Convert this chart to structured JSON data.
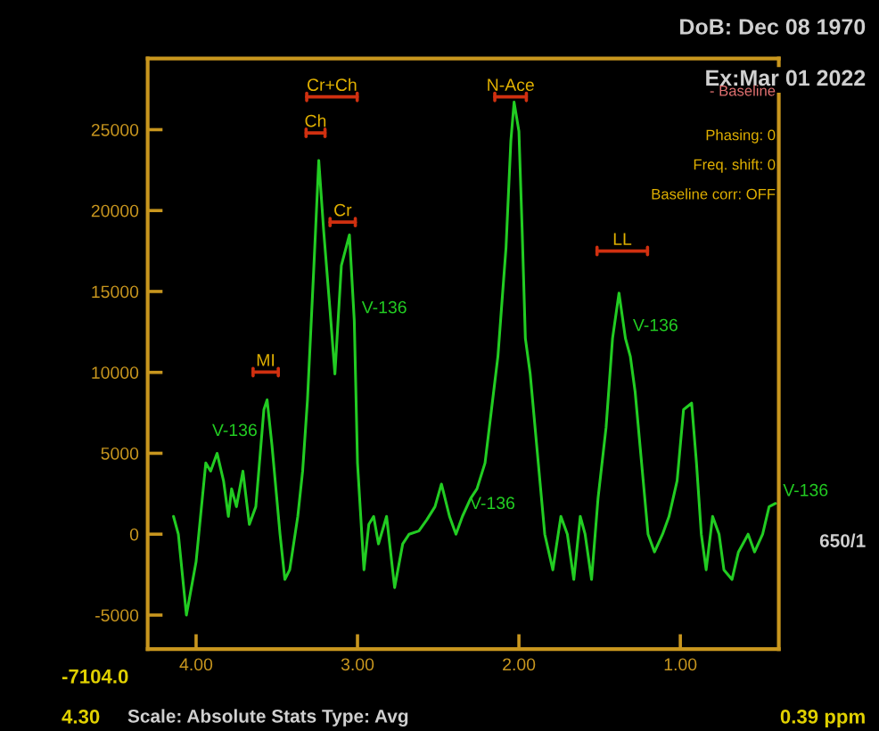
{
  "chart_data": {
    "type": "line",
    "x": [
      4.14,
      4.11,
      4.06,
      4.0,
      3.94,
      3.91,
      3.87,
      3.83,
      3.8,
      3.78,
      3.75,
      3.71,
      3.67,
      3.63,
      3.58,
      3.56,
      3.53,
      3.48,
      3.45,
      3.42,
      3.37,
      3.34,
      3.31,
      3.27,
      3.24,
      3.21,
      3.17,
      3.14,
      3.1,
      3.05,
      3.02,
      3.0,
      2.96,
      2.93,
      2.9,
      2.87,
      2.82,
      2.77,
      2.72,
      2.68,
      2.62,
      2.57,
      2.52,
      2.48,
      2.43,
      2.39,
      2.35,
      2.3,
      2.26,
      2.21,
      2.17,
      2.13,
      2.08,
      2.05,
      2.03,
      2.0,
      1.98,
      1.96,
      1.93,
      1.88,
      1.84,
      1.79,
      1.74,
      1.7,
      1.66,
      1.62,
      1.59,
      1.55,
      1.51,
      1.46,
      1.42,
      1.38,
      1.34,
      1.31,
      1.28,
      1.24,
      1.2,
      1.16,
      1.11,
      1.07,
      1.02,
      0.98,
      0.93,
      0.9,
      0.87,
      0.84,
      0.8,
      0.76,
      0.73,
      0.68,
      0.64,
      0.58,
      0.54,
      0.49,
      0.45,
      0.41
    ],
    "series": [
      {
        "color": "#22cc22",
        "values": [
          1100,
          0,
          -5000,
          -1700,
          4400,
          3900,
          5000,
          3300,
          1100,
          2800,
          1700,
          3900,
          600,
          1700,
          7700,
          8300,
          5500,
          0,
          -2800,
          -2200,
          1100,
          3900,
          8300,
          16600,
          23100,
          18800,
          13800,
          9900,
          16600,
          18500,
          13200,
          4400,
          -2200,
          600,
          1100,
          -600,
          1100,
          -3300,
          -600,
          0,
          200,
          900,
          1700,
          3100,
          1100,
          0,
          1100,
          2200,
          2800,
          4400,
          7700,
          11000,
          17700,
          24300,
          26700,
          24900,
          18800,
          12100,
          9900,
          4400,
          0,
          -2200,
          1100,
          0,
          -2800,
          1100,
          0,
          -2800,
          2200,
          6600,
          12100,
          14900,
          12100,
          11000,
          8800,
          4400,
          0,
          -1100,
          0,
          1100,
          3300,
          7700,
          8100,
          4400,
          0,
          -2200,
          1100,
          0,
          -2200,
          -2800,
          -1100,
          0,
          -1100,
          0,
          1700,
          1900
        ],
        "value_labels": [
          null,
          null,
          null,
          null,
          null,
          null,
          "V-136",
          null,
          null,
          null,
          null,
          null,
          null,
          null,
          null,
          null,
          null,
          null,
          null,
          null,
          null,
          null,
          null,
          null,
          null,
          null,
          null,
          null,
          null,
          null,
          "V-136",
          null,
          null,
          null,
          null,
          null,
          null,
          null,
          null,
          null,
          null,
          null,
          null,
          null,
          null,
          null,
          "V-136",
          null,
          null,
          null,
          null,
          null,
          null,
          null,
          null,
          null,
          null,
          null,
          null,
          null,
          null,
          null,
          null,
          null,
          null,
          null,
          null,
          null,
          null,
          null,
          null,
          null,
          "V-136",
          null,
          null,
          null,
          null,
          null,
          null,
          null,
          null,
          null,
          null,
          null,
          null,
          null,
          null,
          null,
          null,
          null,
          null,
          null,
          null,
          null,
          null,
          "V-136"
        ]
      }
    ],
    "xlim": [
      4.3,
      0.39
    ],
    "xticks": [
      {
        "value": 4.0,
        "label": "4.00"
      },
      {
        "value": 3.0,
        "label": "3.00"
      },
      {
        "value": 2.0,
        "label": "2.00"
      },
      {
        "value": 1.0,
        "label": "1.00"
      }
    ],
    "ylim": [
      -7104,
      29400
    ],
    "yticks": [
      -5000,
      0,
      5000,
      10000,
      15000,
      20000,
      25000
    ],
    "grid": false,
    "line_style": "solid",
    "marker": "none",
    "annotations": [
      "DoB: Dec 08 1970",
      "Ex:Mar 01 2022",
      "- Baseline",
      "Phasing: 0",
      "Freq. shift: 0",
      "Baseline corr: OFF",
      "650/1",
      "-7104.0",
      "4.30",
      "Scale: Absolute Stats Type: Avg",
      "0.39 ppm",
      "Cr+Ch",
      "Ch",
      "Cr",
      "N-Ace",
      "MI",
      "LL"
    ]
  }
}
